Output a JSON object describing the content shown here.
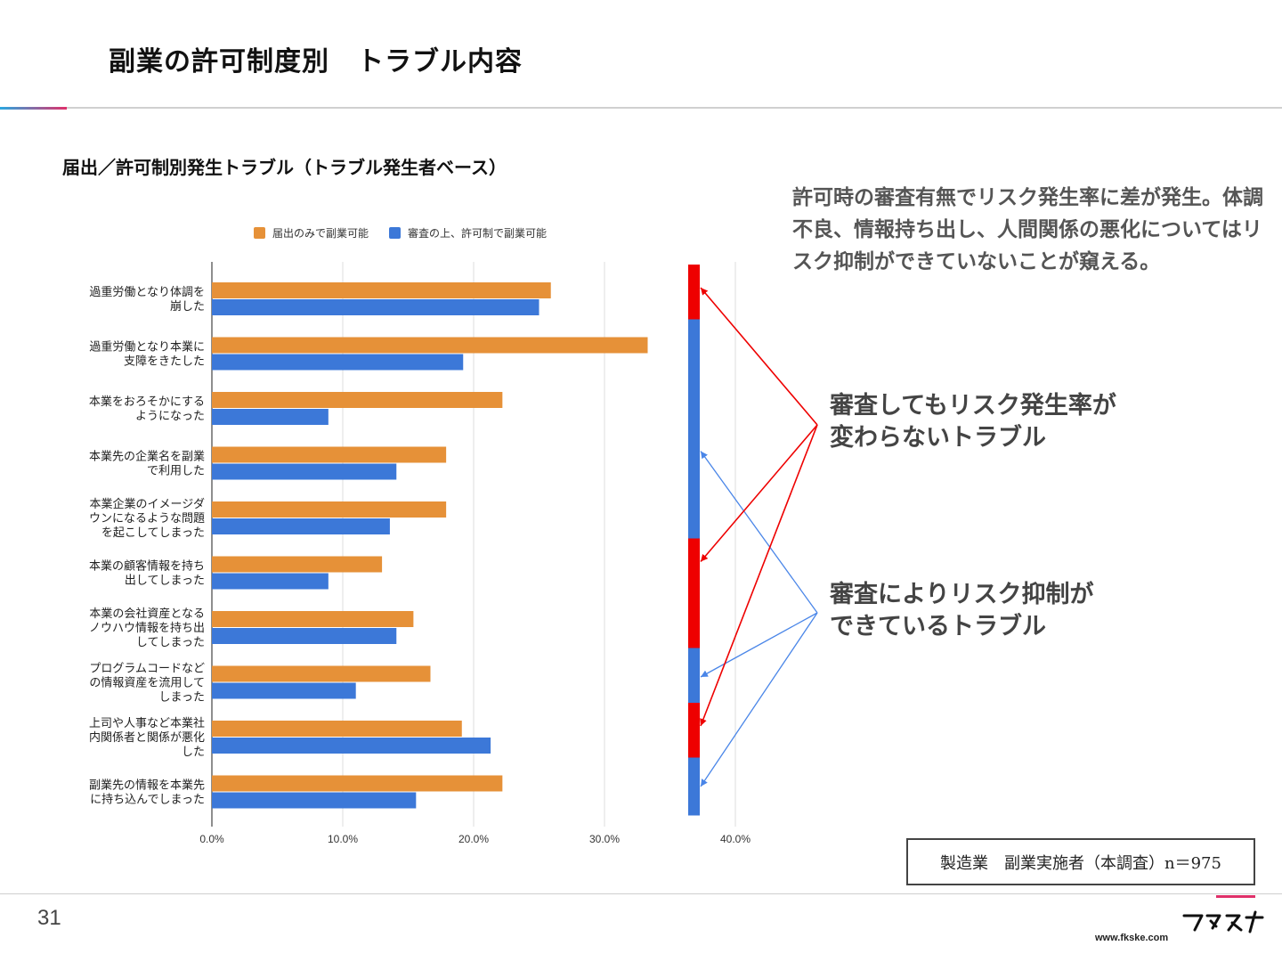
{
  "slide": {
    "title": "副業の許可制度別　トラブル内容",
    "subtitle": "届出／許可制別発生トラブル（トラブル発生者ベース）",
    "summary": "許可時の審査有無でリスク発生率に差が発生。体調不良、情報持ち出し、人間関係の悪化についてはリスク抑制ができていないことが窺える。",
    "callout_same_line1": "審査してもリスク発生率が",
    "callout_same_line2": "変わらないトラブル",
    "callout_suppressed_line1": "審査によりリスク抑制が",
    "callout_suppressed_line2": "できているトラブル",
    "source": "製造業　副業実施者（本調査）n＝975",
    "page_number": "31",
    "logo_text": "フクスケ",
    "url": "www.fkske.com"
  },
  "colors": {
    "orange": "#E69138",
    "blue": "#3C78D8",
    "red": "#EE0000",
    "arrow_blue": "#4A86E8"
  },
  "chart_data": {
    "type": "bar",
    "orientation": "horizontal",
    "categories": [
      [
        "過重労働となり体調を",
        "崩した"
      ],
      [
        "過重労働となり本業に",
        "支障をきたした"
      ],
      [
        "本業をおろそかにする",
        "ようになった"
      ],
      [
        "本業先の企業名を副業",
        "で利用した"
      ],
      [
        "本業企業のイメージダ",
        "ウンになるような問題",
        "を起こしてしまった"
      ],
      [
        "本業の顧客情報を持ち",
        "出してしまった"
      ],
      [
        "本業の会社資産となる",
        "ノウハウ情報を持ち出",
        "してしまった"
      ],
      [
        "プログラムコードなど",
        "の情報資産を流用して",
        "しまった"
      ],
      [
        "上司や人事など本業社",
        "内関係者と関係が悪化",
        "した"
      ],
      [
        "副業先の情報を本業先",
        "に持ち込んでしまった"
      ]
    ],
    "series": [
      {
        "name": "届出のみで副業可能",
        "color": "#E69138",
        "values": [
          25.9,
          33.3,
          22.2,
          17.9,
          17.9,
          13.0,
          15.4,
          16.7,
          19.1,
          22.2
        ]
      },
      {
        "name": "審査の上、許可制で副業可能",
        "color": "#3C78D8",
        "values": [
          25.0,
          19.2,
          8.9,
          14.1,
          13.6,
          8.9,
          14.1,
          11.0,
          21.3,
          15.6
        ]
      }
    ],
    "x_ticks": [
      "0.0%",
      "10.0%",
      "20.0%",
      "30.0%",
      "40.0%"
    ],
    "xlim": [
      0,
      40
    ],
    "grid": true,
    "legend_position": "top",
    "group_markers": [
      {
        "type": "same",
        "color": "#EE0000",
        "categories": [
          0
        ]
      },
      {
        "type": "suppressed",
        "color": "#3C78D8",
        "categories": [
          1,
          2,
          3,
          4
        ]
      },
      {
        "type": "same",
        "color": "#EE0000",
        "categories": [
          5,
          6
        ]
      },
      {
        "type": "suppressed",
        "color": "#3C78D8",
        "categories": [
          7
        ]
      },
      {
        "type": "same",
        "color": "#EE0000",
        "categories": [
          8
        ]
      },
      {
        "type": "suppressed",
        "color": "#3C78D8",
        "categories": [
          9
        ]
      }
    ]
  }
}
